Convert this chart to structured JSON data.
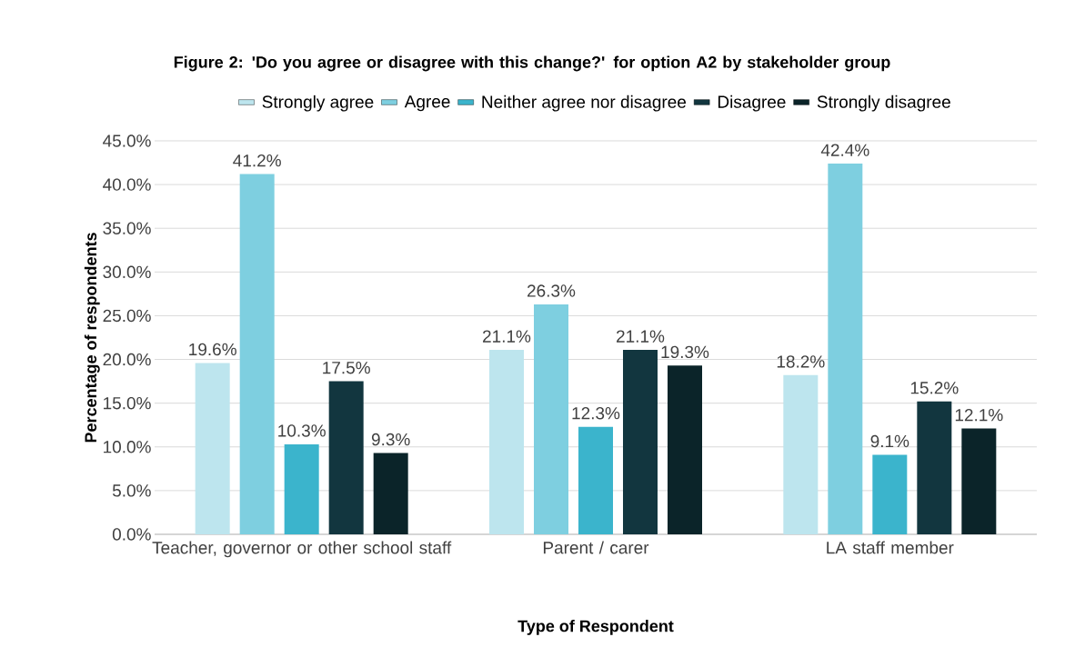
{
  "chart_data": {
    "type": "bar",
    "title": "Figure 2: 'Do you agree or disagree with this change?' for option A2 by stakeholder group",
    "xlabel": "Type of Respondent",
    "ylabel": "Percentage of respondents",
    "categories": [
      "Teacher, governor or other school staff",
      "Parent / carer",
      "LA staff member"
    ],
    "series": [
      {
        "name": "Strongly agree",
        "color": "#bde5ee",
        "values": [
          19.6,
          21.1,
          18.2
        ],
        "value_labels": [
          "19.6%",
          "21.1%",
          "18.2%"
        ]
      },
      {
        "name": "Agree",
        "color": "#7ecfe0",
        "values": [
          41.2,
          26.3,
          42.4
        ],
        "value_labels": [
          "41.2%",
          "26.3%",
          "42.4%"
        ]
      },
      {
        "name": "Neither agree nor disagree",
        "color": "#3bb4cc",
        "values": [
          10.3,
          12.3,
          9.1
        ],
        "value_labels": [
          "10.3%",
          "12.3%",
          "9.1%"
        ]
      },
      {
        "name": "Disagree",
        "color": "#12363f",
        "values": [
          17.5,
          21.1,
          15.2
        ],
        "value_labels": [
          "17.5%",
          "21.1%",
          "15.2%"
        ]
      },
      {
        "name": "Strongly disagree",
        "color": "#0b2429",
        "values": [
          9.3,
          19.3,
          12.1
        ],
        "value_labels": [
          "9.3%",
          "19.3%",
          "12.1%"
        ]
      }
    ],
    "ylim": [
      0,
      45
    ],
    "yticks": [
      {
        "value": 0,
        "label": "0.0%"
      },
      {
        "value": 5,
        "label": "5.0%"
      },
      {
        "value": 10,
        "label": "10.0%"
      },
      {
        "value": 15,
        "label": "15.0%"
      },
      {
        "value": 20,
        "label": "20.0%"
      },
      {
        "value": 25,
        "label": "25.0%"
      },
      {
        "value": 30,
        "label": "30.0%"
      },
      {
        "value": 35,
        "label": "35.0%"
      },
      {
        "value": 40,
        "label": "40.0%"
      },
      {
        "value": 45,
        "label": "45.0%"
      }
    ],
    "grid": "y",
    "legend": "top"
  }
}
